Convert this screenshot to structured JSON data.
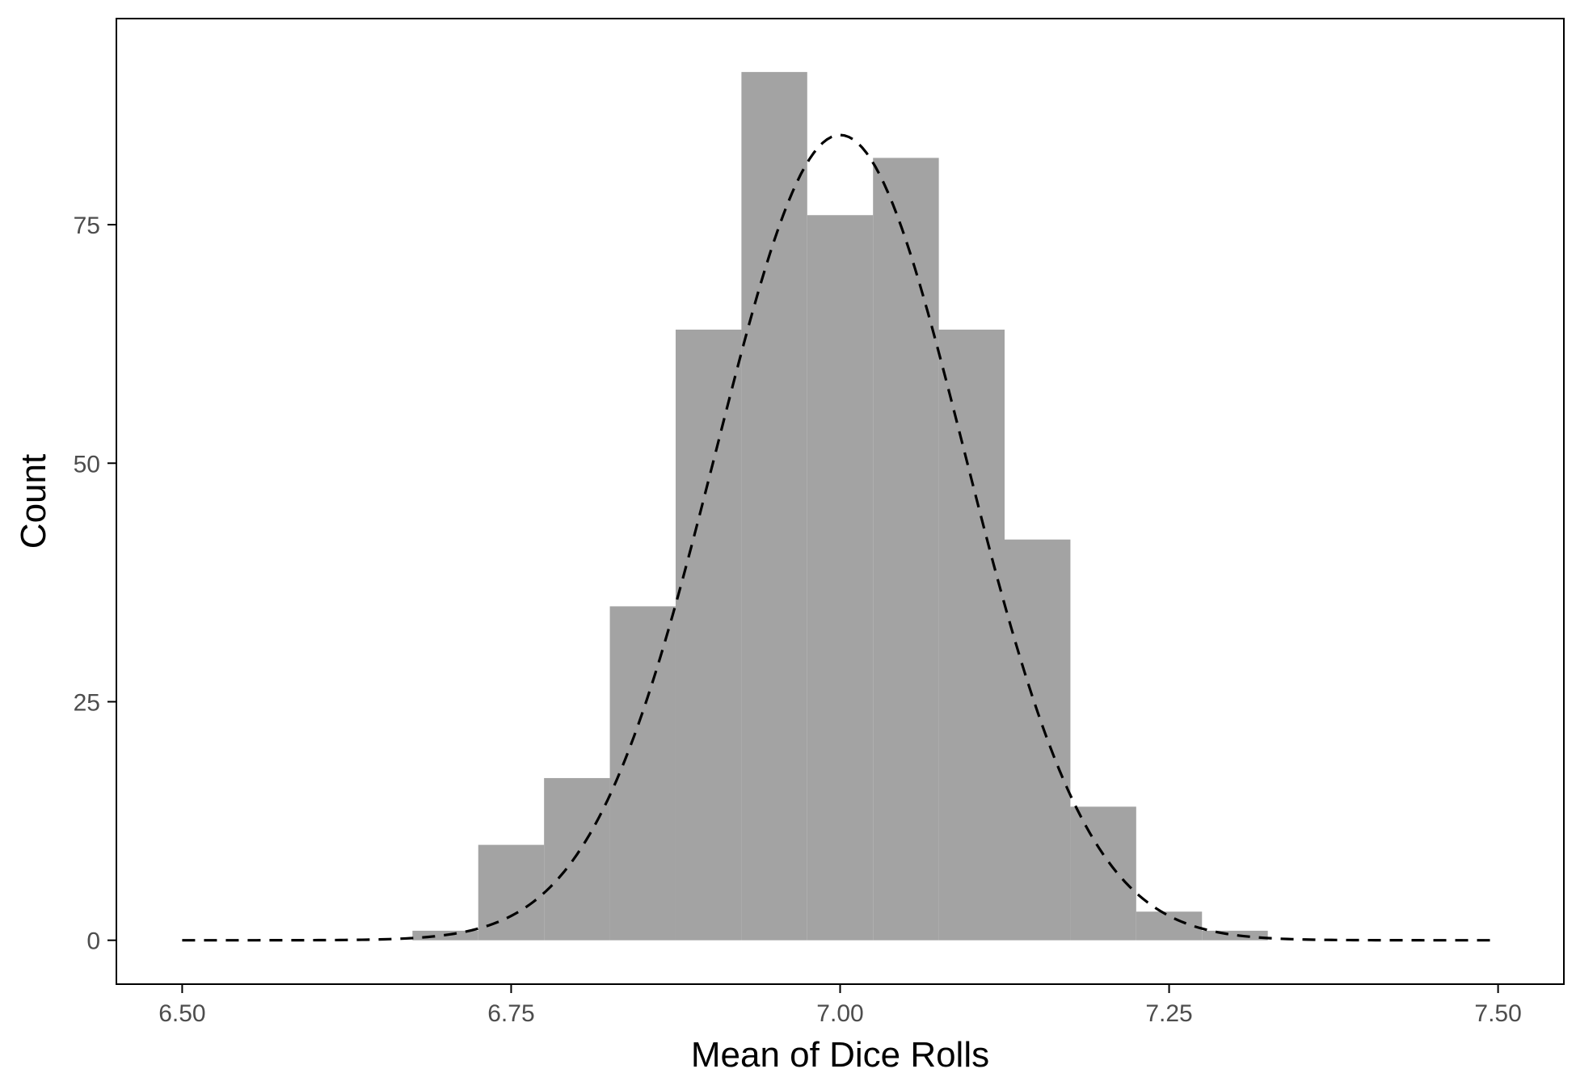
{
  "chart_data": {
    "type": "bar",
    "title": "",
    "xlabel": "Mean of Dice Rolls",
    "ylabel": "Count",
    "xlim": [
      6.45,
      7.55
    ],
    "ylim": [
      -4.6,
      96.6
    ],
    "xticks": [
      6.5,
      6.75,
      7.0,
      7.25,
      7.5
    ],
    "xtick_labels": [
      "6.50",
      "6.75",
      "7.00",
      "7.25",
      "7.50"
    ],
    "yticks": [
      0,
      25,
      50,
      75
    ],
    "ytick_labels": [
      "0",
      "25",
      "50",
      "75"
    ],
    "grid": false,
    "legend": "none",
    "bin_width": 0.05,
    "bins": [
      {
        "x": 6.7,
        "count": 1
      },
      {
        "x": 6.75,
        "count": 10
      },
      {
        "x": 6.8,
        "count": 17
      },
      {
        "x": 6.85,
        "count": 35
      },
      {
        "x": 6.9,
        "count": 64
      },
      {
        "x": 6.95,
        "count": 91
      },
      {
        "x": 7.0,
        "count": 76
      },
      {
        "x": 7.05,
        "count": 82
      },
      {
        "x": 7.1,
        "count": 64
      },
      {
        "x": 7.15,
        "count": 42
      },
      {
        "x": 7.2,
        "count": 14
      },
      {
        "x": 7.25,
        "count": 3
      },
      {
        "x": 7.3,
        "count": 1
      }
    ],
    "normal_curve": {
      "mean": 7.0,
      "sd": 0.0945,
      "peak": 84.4,
      "x_range": [
        6.5,
        7.5
      ],
      "style": "dashed"
    },
    "colors": {
      "bar": "#a3a3a3",
      "curve": "#000000",
      "axis": "#000000",
      "tick_label": "#4d4d4d"
    }
  }
}
